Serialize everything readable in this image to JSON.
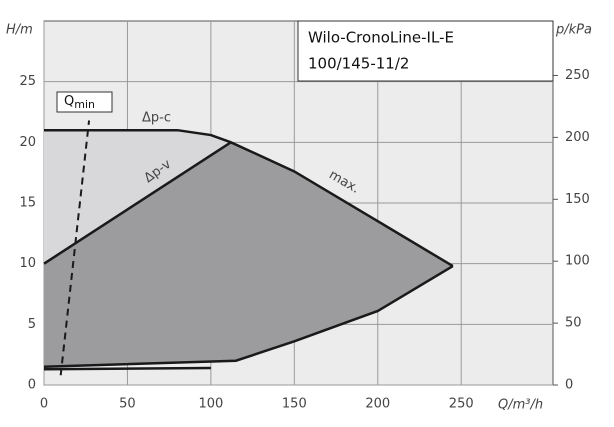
{
  "chart_data": {
    "type": "line",
    "title": [
      "Wilo-CronoLine-IL-E",
      "100/145-11/2"
    ],
    "x_label": "Q/m³/h",
    "y_label": "H/m",
    "y2_label": "p/kPa",
    "annotations": [
      "Δp-c",
      "Δp-v",
      "max."
    ],
    "qmin_label": {
      "text": "Q",
      "subscript": "min"
    },
    "xlim": [
      0,
      305
    ],
    "xticks": [
      0,
      50,
      100,
      150,
      200,
      250
    ],
    "ylim": [
      0,
      30
    ],
    "yticks": [
      0,
      5,
      10,
      15,
      20,
      25
    ],
    "y2lim": [
      0,
      294
    ],
    "y2ticks": [
      0,
      50,
      100,
      150,
      200,
      250
    ],
    "grid": true,
    "area_colors": {
      "light": "#d8d8da",
      "dark": "#9c9c9e"
    },
    "series": [
      {
        "x": [
          0,
          80,
          100,
          112,
          150,
          200,
          245
        ],
        "values": [
          21,
          21,
          20.6,
          20,
          17.6,
          13.5,
          9.8
        ],
        "color": "#1a1a1a"
      },
      {
        "x": [
          245,
          200,
          150,
          115,
          0
        ],
        "values": [
          9.8,
          6.1,
          3.6,
          2.0,
          1.5
        ],
        "color": "#1a1a1a"
      },
      {
        "x": [
          0,
          112
        ],
        "values": [
          10,
          20
        ],
        "color": "#1a1a1a"
      },
      {
        "x": [
          0,
          100
        ],
        "values": [
          1.3,
          1.4
        ],
        "color": "#1a1a1a"
      },
      {
        "x": [
          10,
          27
        ],
        "values": [
          0.8,
          21.8
        ],
        "color": "#1a1a1a",
        "dashed": true
      }
    ]
  }
}
